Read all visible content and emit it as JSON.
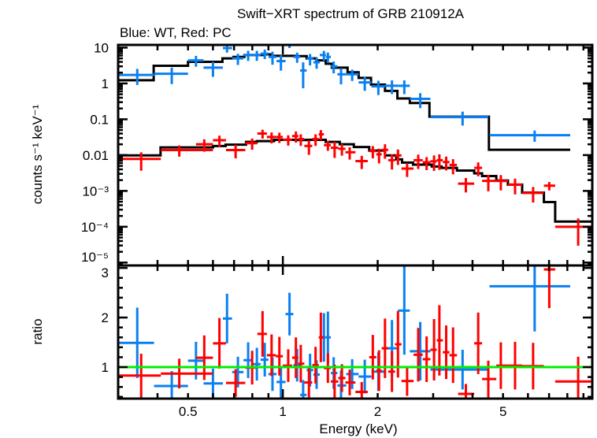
{
  "title": "Swift−XRT spectrum of GRB 210912A",
  "subtitle": "Blue: WT, Red: PC",
  "chart_data": [
    {
      "type": "scatter",
      "panel": "spectrum",
      "ylabel": "counts s⁻¹ keV⁻¹",
      "xscale": "log",
      "yscale": "log",
      "xlim": [
        0.3,
        9.6
      ],
      "ylim": [
        8.3e-06,
        11.9
      ],
      "yticks": [
        {
          "value": 10,
          "label": "10"
        },
        {
          "value": 1,
          "label": "1"
        },
        {
          "value": 0.1,
          "label": "0.1"
        },
        {
          "value": 0.01,
          "label": "0.01"
        },
        {
          "value": 0.001,
          "label": "10⁻³"
        },
        {
          "value": 0.0001,
          "label": "10⁻⁴"
        },
        {
          "value": 1e-05,
          "label": "10⁻⁵"
        }
      ],
      "point_format": [
        "energy_keV",
        "e_lo",
        "e_hi",
        "counts",
        "ratio",
        "ratio_err"
      ],
      "series": [
        {
          "name": "WT",
          "color": "#0a80f0",
          "points": [
            [
              0.345,
              0.3,
              0.39,
              1.73,
              1.49,
              0.71
            ],
            [
              0.444,
              0.39,
              0.5,
              1.86,
              0.62,
              0.3
            ],
            [
              0.53,
              0.5,
              0.56,
              4.4,
              1.13,
              0.38
            ],
            [
              0.6,
              0.56,
              0.645,
              2.76,
              0.67,
              0.3
            ],
            [
              0.665,
              0.645,
              0.69,
              9.7,
              1.98,
              0.5
            ],
            [
              0.72,
              0.69,
              0.75,
              5.0,
              0.9,
              0.31
            ],
            [
              0.776,
              0.75,
              0.8,
              6.2,
              1.14,
              0.36
            ],
            [
              0.827,
              0.8,
              0.85,
              6.2,
              1.06,
              0.33
            ],
            [
              0.876,
              0.85,
              0.9,
              6.8,
              1.15,
              0.34
            ],
            [
              0.927,
              0.9,
              0.955,
              5.5,
              0.86,
              0.34
            ],
            [
              0.986,
              0.955,
              1.02,
              4.2,
              0.7,
              0.32
            ],
            [
              1.05,
              1.02,
              1.08,
              12.3,
              2.07,
              0.43
            ],
            [
              1.11,
              1.08,
              1.135,
              5.5,
              1.04,
              0.33
            ],
            [
              1.16,
              1.135,
              1.19,
              2.3,
              0.44,
              0.3
            ],
            [
              1.22,
              1.19,
              1.25,
              4.9,
              0.94,
              0.33
            ],
            [
              1.28,
              1.25,
              1.31,
              3.9,
              0.85,
              0.29
            ],
            [
              1.35,
              1.31,
              1.37,
              6.2,
              1.6,
              0.49
            ],
            [
              1.39,
              1.37,
              1.42,
              5.5,
              1.6,
              0.52
            ],
            [
              1.45,
              1.42,
              1.49,
              3.0,
              0.88,
              0.32
            ],
            [
              1.53,
              1.49,
              1.59,
              1.8,
              0.63,
              0.3
            ],
            [
              1.66,
              1.59,
              1.74,
              1.8,
              0.86,
              0.3
            ],
            [
              1.82,
              1.74,
              1.91,
              1.07,
              0.81,
              0.34
            ],
            [
              2.01,
              1.91,
              2.11,
              0.83,
              0.91,
              0.39
            ],
            [
              2.22,
              2.11,
              2.32,
              0.86,
              1.38,
              0.57
            ],
            [
              2.43,
              2.32,
              2.53,
              0.86,
              2.14,
              0.89
            ],
            [
              2.73,
              2.53,
              2.94,
              0.37,
              1.32,
              0.59
            ],
            [
              3.72,
              2.94,
              4.49,
              0.115,
              0.95,
              0.4
            ],
            [
              6.3,
              4.53,
              8.17,
              0.036,
              2.63,
              0.91
            ]
          ],
          "model_color": "#000000",
          "model_steps": [
            [
              0.3,
              1.23
            ],
            [
              0.389,
              3.11
            ],
            [
              0.5,
              4.0
            ],
            [
              0.643,
              5.0
            ],
            [
              0.697,
              5.5
            ],
            [
              0.755,
              6.2
            ],
            [
              0.827,
              6.2
            ],
            [
              0.866,
              6.5
            ],
            [
              0.917,
              5.9
            ],
            [
              1.088,
              5.8
            ],
            [
              1.19,
              5.0
            ],
            [
              1.277,
              4.4
            ],
            [
              1.368,
              3.56
            ],
            [
              1.43,
              2.76
            ],
            [
              1.605,
              2.05
            ],
            [
              1.74,
              1.43
            ],
            [
              1.905,
              0.93
            ],
            [
              2.11,
              0.62
            ],
            [
              2.31,
              0.38
            ],
            [
              2.53,
              0.285
            ],
            [
              2.92,
              0.118
            ],
            [
              4.51,
              0.0141
            ],
            [
              8.17,
              0.0141
            ]
          ]
        },
        {
          "name": "PC",
          "color": "#ff0000",
          "points": [
            [
              0.355,
              0.3,
              0.41,
              0.0078,
              0.83,
              0.44
            ],
            [
              0.469,
              0.41,
              0.6,
              0.0138,
              0.87,
              0.3
            ],
            [
              0.563,
              0.53,
              0.6,
              0.02,
              1.19,
              0.45
            ],
            [
              0.629,
              0.6,
              0.66,
              0.026,
              1.48,
              0.51
            ],
            [
              0.708,
              0.66,
              0.76,
              0.0138,
              0.68,
              0.28
            ],
            [
              0.799,
              0.76,
              0.83,
              0.0215,
              0.99,
              0.34
            ],
            [
              0.862,
              0.83,
              0.89,
              0.04,
              1.67,
              0.46
            ],
            [
              0.921,
              0.89,
              0.95,
              0.032,
              1.24,
              0.42
            ],
            [
              0.975,
              0.95,
              1.0,
              0.032,
              1.22,
              0.39
            ],
            [
              1.04,
              1.0,
              1.07,
              0.027,
              1.03,
              0.33
            ],
            [
              1.1,
              1.07,
              1.12,
              0.034,
              1.19,
              0.41
            ],
            [
              1.14,
              1.12,
              1.17,
              0.028,
              1.07,
              0.38
            ],
            [
              1.21,
              1.17,
              1.24,
              0.018,
              0.69,
              0.3
            ],
            [
              1.27,
              1.24,
              1.3,
              0.028,
              1.04,
              0.37
            ],
            [
              1.32,
              1.3,
              1.35,
              0.038,
              1.6,
              0.5
            ],
            [
              1.39,
              1.35,
              1.42,
              0.019,
              0.98,
              0.3
            ],
            [
              1.46,
              1.42,
              1.5,
              0.016,
              0.71,
              0.34
            ],
            [
              1.54,
              1.5,
              1.58,
              0.015,
              0.78,
              0.28
            ],
            [
              1.63,
              1.58,
              1.7,
              0.012,
              0.69,
              0.26
            ],
            [
              1.78,
              1.7,
              1.86,
              0.0068,
              0.5,
              0.2
            ],
            [
              1.93,
              1.88,
              1.98,
              0.013,
              1.2,
              0.45
            ],
            [
              2.02,
              1.98,
              2.06,
              0.0105,
              0.93,
              0.41
            ],
            [
              2.11,
              2.06,
              2.16,
              0.014,
              1.38,
              0.6
            ],
            [
              2.22,
              2.16,
              2.27,
              0.0072,
              0.91,
              0.41
            ],
            [
              2.32,
              2.27,
              2.38,
              0.0098,
              1.46,
              0.67
            ],
            [
              2.48,
              2.38,
              2.6,
              0.0042,
              0.72,
              0.3
            ],
            [
              2.69,
              2.6,
              2.78,
              0.0072,
              1.25,
              0.54
            ],
            [
              2.86,
              2.78,
              2.94,
              0.0063,
              1.16,
              0.46
            ],
            [
              3.02,
              2.94,
              3.08,
              0.0067,
              1.35,
              0.62
            ],
            [
              3.14,
              3.08,
              3.22,
              0.0072,
              1.54,
              0.71
            ],
            [
              3.3,
              3.22,
              3.38,
              0.0064,
              1.3,
              0.54
            ],
            [
              3.47,
              3.38,
              3.57,
              0.0053,
              1.24,
              0.56
            ],
            [
              3.81,
              3.6,
              4.05,
              0.0016,
              0.46,
              0.2
            ],
            [
              4.17,
              4.05,
              4.29,
              0.0044,
              1.48,
              0.62
            ],
            [
              4.49,
              4.29,
              4.76,
              0.0019,
              0.76,
              0.37
            ],
            [
              4.92,
              4.76,
              5.18,
              0.0019,
              1.03,
              0.47
            ],
            [
              5.46,
              5.18,
              5.75,
              0.0015,
              1.03,
              0.48
            ],
            [
              6.23,
              5.75,
              6.74,
              0.00088,
              1.02,
              0.47
            ],
            [
              7.01,
              6.74,
              7.32,
              0.0014,
              2.97,
              0.78
            ],
            [
              8.66,
              7.32,
              9.6,
              0.0001,
              0.71,
              0.5
            ]
          ],
          "model_color": "#000000",
          "model_steps": [
            [
              0.3,
              0.0098
            ],
            [
              0.409,
              0.0164
            ],
            [
              0.6,
              0.0179
            ],
            [
              0.658,
              0.0196
            ],
            [
              0.764,
              0.0233
            ],
            [
              0.827,
              0.0245
            ],
            [
              0.938,
              0.0267
            ],
            [
              1.113,
              0.0263
            ],
            [
              1.19,
              0.0267
            ],
            [
              1.368,
              0.0233
            ],
            [
              1.516,
              0.02
            ],
            [
              1.68,
              0.0168
            ],
            [
              1.88,
              0.0134
            ],
            [
              2.11,
              0.0098
            ],
            [
              2.29,
              0.0076
            ],
            [
              2.39,
              0.0062
            ],
            [
              2.59,
              0.0054
            ],
            [
              2.97,
              0.0048
            ],
            [
              3.19,
              0.0044
            ],
            [
              3.57,
              0.0037
            ],
            [
              4.05,
              0.0031
            ],
            [
              4.29,
              0.0026
            ],
            [
              4.76,
              0.00195
            ],
            [
              5.18,
              0.0015
            ],
            [
              5.75,
              0.0009
            ],
            [
              6.74,
              0.00049
            ],
            [
              7.32,
              0.00014
            ],
            [
              9.6,
              0.00014
            ]
          ]
        }
      ]
    },
    {
      "type": "scatter",
      "panel": "ratio",
      "ylabel": "ratio",
      "xlabel": "Energy (keV)",
      "xscale": "log",
      "xlim": [
        0.3,
        9.6
      ],
      "ylim": [
        0.365,
        3.05
      ],
      "yticks": [
        {
          "value": 1,
          "label": "1"
        },
        {
          "value": 2,
          "label": "2"
        },
        {
          "value": 3,
          "label": "3"
        }
      ],
      "xticks": [
        {
          "value": 0.5,
          "label": "0.5"
        },
        {
          "value": 1,
          "label": "1"
        },
        {
          "value": 2,
          "label": "2"
        },
        {
          "value": 5,
          "label": "5"
        }
      ],
      "reference_line": {
        "value": 1,
        "color": "#00ee00"
      }
    }
  ]
}
